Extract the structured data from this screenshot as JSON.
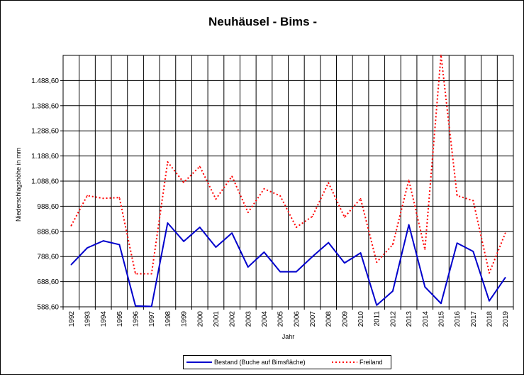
{
  "chart_data": {
    "type": "line",
    "title": "Neuhäusel - Bims -",
    "xlabel": "Jahr",
    "ylabel": "Niederschlagshöhe in mm",
    "categories": [
      "1992",
      "1993",
      "1994",
      "1995",
      "1996",
      "1997",
      "1998",
      "1999",
      "2000",
      "2001",
      "2002",
      "2003",
      "2004",
      "2005",
      "2006",
      "2007",
      "2008",
      "2009",
      "2010",
      "2011",
      "2012",
      "2013",
      "2014",
      "2015",
      "2016",
      "2017",
      "2018",
      "2019"
    ],
    "y_ticks": [
      "588,60",
      "688,60",
      "788,60",
      "888,60",
      "988,60",
      "1.088,60",
      "1.188,60",
      "1.288,60",
      "1.388,60",
      "1.488,60"
    ],
    "ylim": [
      588.6,
      1588.6
    ],
    "grid": true,
    "legend_position": "bottom",
    "series": [
      {
        "name": "Bestand (Buche auf Bimsfläche)",
        "color": "#0000cc",
        "style": "solid",
        "values": [
          756,
          823,
          851,
          836,
          592,
          590,
          922,
          849,
          905,
          826,
          882,
          747,
          806,
          728,
          728,
          788,
          844,
          763,
          803,
          595,
          651,
          915,
          668,
          602,
          842,
          809,
          612,
          705
        ]
      },
      {
        "name": "Freiland",
        "color": "#ff0000",
        "style": "dotted",
        "values": [
          911,
          1031,
          1020,
          1023,
          720,
          720,
          1165,
          1083,
          1147,
          1017,
          1108,
          964,
          1058,
          1030,
          905,
          948,
          1082,
          945,
          1019,
          766,
          836,
          1093,
          817,
          1590,
          1031,
          1011,
          723,
          882
        ]
      }
    ]
  }
}
